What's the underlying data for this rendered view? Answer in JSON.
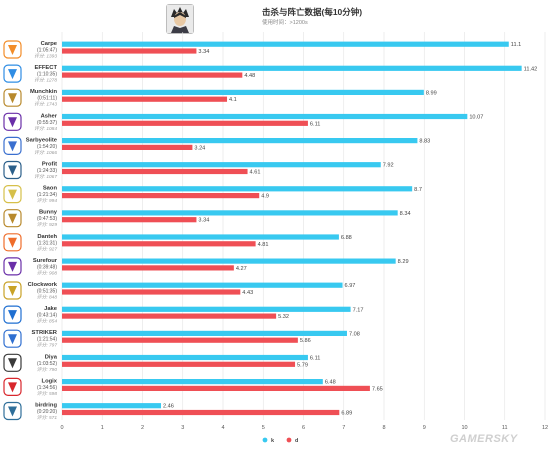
{
  "header": {
    "title": "击杀与阵亡数据(每10分钟)",
    "subtitle": "使用时间：>1200s",
    "hero_icon": "hero-portrait-icon"
  },
  "watermark": "GAMERSKY",
  "colors": {
    "k": "#38c9f0",
    "d": "#ef4f55"
  },
  "chart_data": {
    "type": "bar",
    "orientation": "horizontal",
    "categories": [
      "Carpe",
      "EFFECT",
      "Munchkin",
      "Asher",
      "Sarbyeolite",
      "Profit",
      "Saon",
      "Bunny",
      "Danteh",
      "Surefour",
      "Clockwork",
      "Jake",
      "STRIKER",
      "Diya",
      "Logix",
      "birdring"
    ],
    "times": [
      "(1:05:47)",
      "(1:10:35)",
      "(0:51:11)",
      "(0:55:37)",
      "(1:54:20)",
      "(1:24:33)",
      "(1:21:34)",
      "(0:47:53)",
      "(1:31:31)",
      "(0:39:48)",
      "(0:51:35)",
      "(0:43:14)",
      "(1:21:54)",
      "(1:03:52)",
      "(1:34:56)",
      "(0:20:20)"
    ],
    "scores": [
      "评分: 1393",
      "评分: 1278",
      "评分: 1743",
      "评分: 1084",
      "评分: 1066",
      "评分: 1067",
      "评分: 994",
      "评分: 929",
      "评分: 927",
      "评分: 908",
      "评分: 848",
      "评分: 854",
      "评分: 797",
      "评分: 790",
      "评分: 598",
      "评分: 571"
    ],
    "series": [
      {
        "name": "k",
        "values": [
          11.1,
          11.42,
          8.99,
          10.07,
          8.83,
          7.92,
          8.7,
          8.34,
          6.88,
          8.29,
          6.97,
          7.17,
          7.08,
          6.11,
          6.48,
          2.46
        ]
      },
      {
        "name": "d",
        "values": [
          3.34,
          4.48,
          4.1,
          6.11,
          3.24,
          4.61,
          4.9,
          3.34,
          4.81,
          4.27,
          4.43,
          5.32,
          5.86,
          5.79,
          7.65,
          6.89
        ]
      }
    ],
    "value_labels": [
      [
        "11.1",
        "11.42",
        "8.99",
        "10.07",
        "8.83",
        "7.92",
        "8.7",
        "8.34",
        "6.88",
        "8.29",
        "6.97",
        "7.17",
        "7.08",
        "6.11",
        "6.48",
        "2.46"
      ],
      [
        "3.34",
        "4.48",
        "4.1",
        "6.11",
        "3.24",
        "4.61",
        "4.9",
        "3.34",
        "4.81",
        "4.27",
        "4.43",
        "5.32",
        "5.86",
        "5.79",
        "7.65",
        "6.89"
      ]
    ],
    "xlim": [
      0,
      12
    ],
    "xticks": [
      "0",
      "1",
      "2",
      "3",
      "4",
      "5",
      "6",
      "7",
      "8",
      "9",
      "10",
      "11",
      "12"
    ],
    "grid": true,
    "legend_position": "bottom-right",
    "team_icons": [
      "team-logo-icon",
      "team-logo-icon",
      "team-logo-icon",
      "team-logo-icon",
      "team-logo-icon",
      "team-logo-icon",
      "team-logo-icon",
      "team-logo-icon",
      "team-logo-icon",
      "team-logo-icon",
      "team-logo-icon",
      "team-logo-icon",
      "team-logo-icon",
      "team-logo-icon",
      "team-logo-icon",
      "team-logo-icon"
    ],
    "team_colors": [
      "#f28c28",
      "#2f8de4",
      "#b8892c",
      "#6a2fa8",
      "#3a6fcf",
      "#2b5f8a",
      "#d6c04a",
      "#b8892c",
      "#ef6d2b",
      "#6a2fa8",
      "#c9a227",
      "#1f6fd1",
      "#2f6fd0",
      "#3a3a3a",
      "#d8262c",
      "#2f6f9a"
    ]
  }
}
